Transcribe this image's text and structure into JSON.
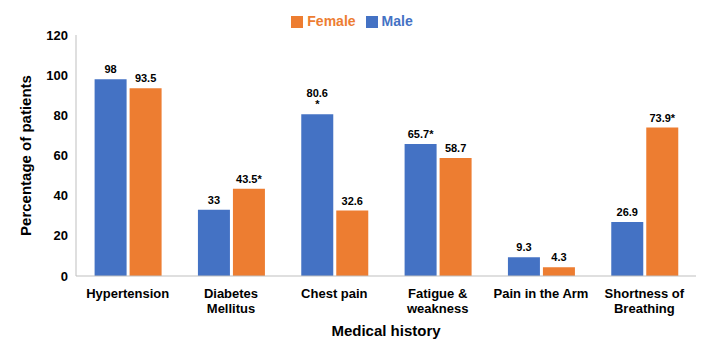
{
  "chart_data": {
    "type": "bar",
    "x_label": "Medical history",
    "y_label": "Percentage of patients",
    "categories": [
      "Hypertension",
      "Diabetes Mellitus",
      "Chest pain",
      "Fatigue & weakness",
      "Pain in the Arm",
      "Shortness of Breathing"
    ],
    "series": [
      {
        "name": "Male",
        "color": "#4472c4",
        "values": [
          98,
          33,
          80.6,
          65.7,
          9.3,
          26.9
        ],
        "value_labels": [
          "98",
          "33",
          "80.6 *",
          "65.7*",
          "9.3",
          "26.9"
        ]
      },
      {
        "name": "Female",
        "color": "#ed7d31",
        "values": [
          93.5,
          43.5,
          32.6,
          58.7,
          4.3,
          73.9
        ],
        "value_labels": [
          "93.5",
          "43.5*",
          "32.6",
          "58.7",
          "4.3",
          "73.9*"
        ]
      }
    ],
    "ylim": [
      0,
      120
    ],
    "yticks": [
      0,
      20,
      40,
      60,
      80,
      100,
      120
    ],
    "grid": false,
    "legend": "top",
    "data_labels": true
  }
}
